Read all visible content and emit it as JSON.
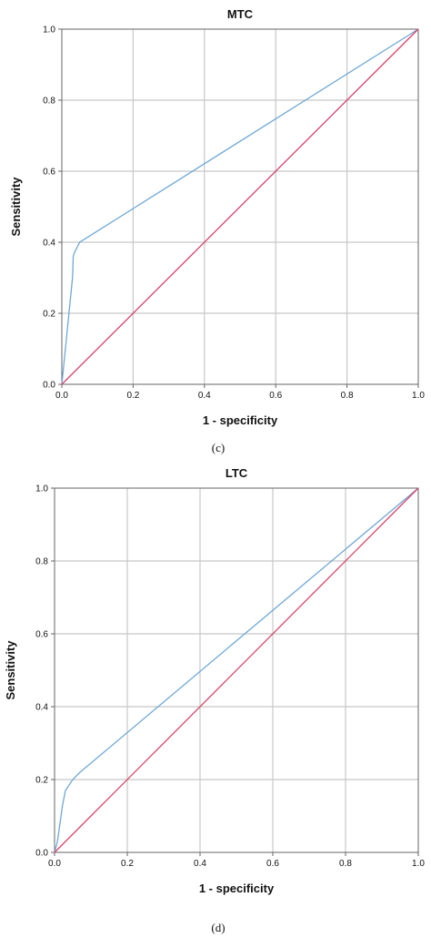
{
  "chart_data": [
    {
      "type": "line",
      "title": "MTC",
      "xlabel": "1 - specificity",
      "ylabel": "Sensitivity",
      "xlim": [
        0,
        1
      ],
      "ylim": [
        0,
        1
      ],
      "xticks": [
        "0.0",
        "0.2",
        "0.4",
        "0.6",
        "0.8",
        "1.0"
      ],
      "yticks": [
        "0.0",
        "0.2",
        "0.4",
        "0.6",
        "0.8",
        "1.0"
      ],
      "grid": true,
      "caption": "(c)",
      "series": [
        {
          "color": "#6fa8d6",
          "x": [
            0,
            0.01,
            0.02,
            0.03,
            0.032,
            0.035,
            0.05,
            1.0
          ],
          "y": [
            0,
            0.1,
            0.2,
            0.3,
            0.36,
            0.37,
            0.4,
            1.0
          ]
        },
        {
          "color": "#d9436a",
          "x": [
            0,
            1
          ],
          "y": [
            0,
            1
          ]
        }
      ]
    },
    {
      "type": "line",
      "title": "LTC",
      "xlabel": "1 - specificity",
      "ylabel": "Sensitivity",
      "xlim": [
        0,
        1
      ],
      "ylim": [
        0,
        1
      ],
      "xticks": [
        "0.0",
        "0.2",
        "0.4",
        "0.6",
        "0.8",
        "1.0"
      ],
      "yticks": [
        "0.0",
        "0.2",
        "0.4",
        "0.6",
        "0.8",
        "1.0"
      ],
      "grid": true,
      "caption": "(d)",
      "series": [
        {
          "color": "#6fa8d6",
          "x": [
            0,
            0.008,
            0.015,
            0.022,
            0.03,
            0.05,
            0.07,
            1.0
          ],
          "y": [
            0,
            0.03,
            0.08,
            0.13,
            0.17,
            0.2,
            0.22,
            1.0
          ]
        },
        {
          "color": "#d9436a",
          "x": [
            0,
            1
          ],
          "y": [
            0,
            1
          ]
        }
      ]
    }
  ]
}
